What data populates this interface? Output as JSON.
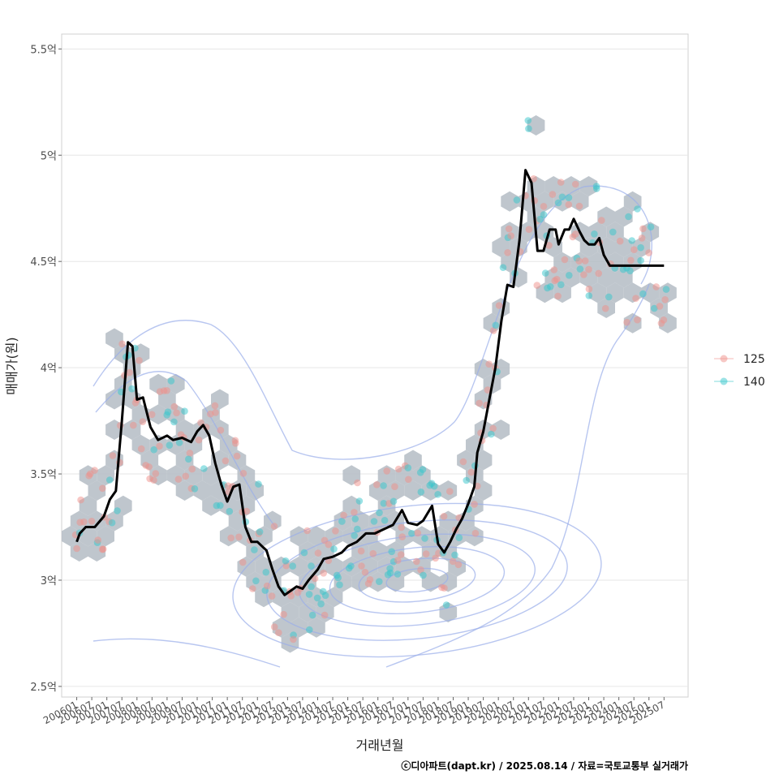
{
  "chart_data": {
    "type": "line",
    "xlabel": "거래년월",
    "ylabel": "매매가(원)",
    "caption": "ⓒ디아파트(dapt.kr) / 2025.08.14 / 자료=국토교통부 실거래가",
    "ylim": [
      2.45,
      5.57
    ],
    "y_ticks": [
      2.5,
      3.0,
      3.5,
      4.0,
      4.5,
      5.0,
      5.5
    ],
    "y_tick_labels": [
      "2.5억",
      "3억",
      "3.5억",
      "4억",
      "4.5억",
      "5억",
      "5.5억"
    ],
    "x_range": [
      2005.5,
      2026.3
    ],
    "x_ticks": [
      2006.0,
      2006.5,
      2007.0,
      2007.5,
      2008.0,
      2008.5,
      2009.0,
      2009.5,
      2010.0,
      2010.5,
      2011.0,
      2011.5,
      2012.0,
      2012.5,
      2013.0,
      2013.5,
      2014.0,
      2014.5,
      2015.0,
      2015.5,
      2016.0,
      2016.5,
      2017.0,
      2017.5,
      2018.0,
      2018.5,
      2019.0,
      2019.5,
      2020.0,
      2020.5,
      2021.0,
      2021.5,
      2022.0,
      2022.5,
      2023.0,
      2023.5,
      2024.0,
      2024.5,
      2025.0,
      2025.5
    ],
    "x_tick_labels": [
      "200601",
      "200607",
      "200701",
      "200707",
      "200801",
      "200807",
      "200901",
      "200907",
      "201001",
      "201007",
      "201101",
      "201107",
      "201201",
      "201207",
      "201301",
      "201307",
      "201401",
      "201407",
      "201501",
      "201507",
      "201601",
      "201607",
      "201701",
      "201707",
      "201801",
      "201807",
      "201901",
      "201907",
      "202001",
      "202007",
      "202101",
      "202107",
      "202201",
      "202207",
      "202301",
      "202307",
      "202401",
      "202407",
      "202501",
      "202507"
    ],
    "grid": true,
    "legend_position": "right",
    "colors": {
      "line": "#000000",
      "hex": "#b4bcc4",
      "contour": "#9aaeea",
      "s125": "#f08f8a",
      "s140": "#36c6cc"
    },
    "legend": [
      {
        "label": "125",
        "color": "#f08f8a"
      },
      {
        "label": "140",
        "color": "#36c6cc"
      }
    ],
    "trend": {
      "x": [
        2006.0,
        2006.1,
        2006.3,
        2006.6,
        2006.9,
        2007.1,
        2007.3,
        2007.5,
        2007.7,
        2007.85,
        2008.0,
        2008.2,
        2008.45,
        2008.7,
        2009.0,
        2009.2,
        2009.5,
        2009.8,
        2010.0,
        2010.2,
        2010.4,
        2010.6,
        2010.8,
        2011.0,
        2011.2,
        2011.4,
        2011.6,
        2011.8,
        2012.0,
        2012.15,
        2012.3,
        2012.5,
        2012.7,
        2012.9,
        2013.1,
        2013.3,
        2013.5,
        2013.7,
        2014.0,
        2014.2,
        2014.5,
        2014.8,
        2015.0,
        2015.3,
        2015.6,
        2015.9,
        2016.2,
        2016.5,
        2016.8,
        2017.0,
        2017.3,
        2017.5,
        2017.8,
        2018.0,
        2018.2,
        2018.4,
        2018.6,
        2018.8,
        2019.0,
        2019.2,
        2019.3,
        2019.5,
        2019.7,
        2019.9,
        2020.1,
        2020.3,
        2020.5,
        2020.7,
        2020.9,
        2021.1,
        2021.3,
        2021.5,
        2021.7,
        2021.9,
        2022.0,
        2022.2,
        2022.35,
        2022.5,
        2022.7,
        2022.85,
        2023.0,
        2023.2,
        2023.35,
        2023.5,
        2023.7,
        2023.9,
        2024.1,
        2024.3,
        2024.5,
        2024.7,
        2024.9,
        2025.1,
        2025.3,
        2025.5
      ],
      "y": [
        3.18,
        3.22,
        3.25,
        3.25,
        3.3,
        3.38,
        3.42,
        3.75,
        4.12,
        4.1,
        3.85,
        3.86,
        3.72,
        3.66,
        3.68,
        3.66,
        3.67,
        3.65,
        3.7,
        3.73,
        3.68,
        3.55,
        3.45,
        3.37,
        3.44,
        3.45,
        3.25,
        3.18,
        3.18,
        3.16,
        3.14,
        3.05,
        2.97,
        2.93,
        2.95,
        2.97,
        2.96,
        3.0,
        3.05,
        3.1,
        3.11,
        3.13,
        3.16,
        3.18,
        3.22,
        3.22,
        3.24,
        3.26,
        3.33,
        3.27,
        3.26,
        3.28,
        3.35,
        3.17,
        3.13,
        3.18,
        3.24,
        3.29,
        3.36,
        3.44,
        3.6,
        3.7,
        3.85,
        4.0,
        4.22,
        4.39,
        4.38,
        4.6,
        4.93,
        4.87,
        4.55,
        4.55,
        4.65,
        4.65,
        4.58,
        4.65,
        4.65,
        4.7,
        4.64,
        4.6,
        4.58,
        4.58,
        4.61,
        4.53,
        4.48,
        4.48,
        4.48,
        4.48,
        4.48,
        4.48,
        4.48,
        4.48,
        4.48,
        4.48
      ]
    }
  }
}
